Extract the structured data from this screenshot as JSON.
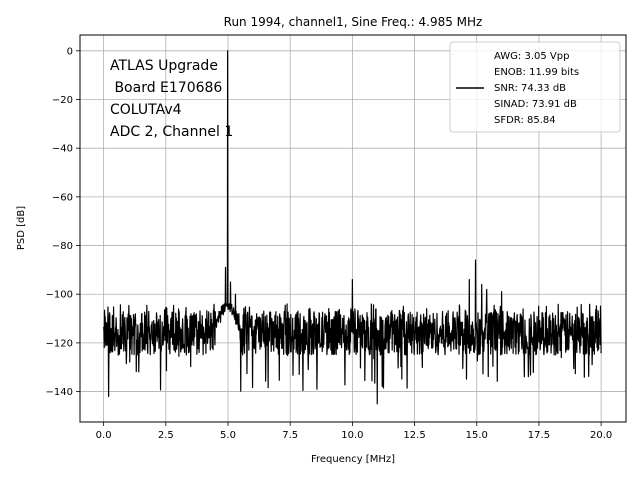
{
  "chart_data": {
    "type": "line",
    "title": "Run 1994, channel1, Sine Freq.: 4.985 MHz",
    "xlabel": "Frequency [MHz]",
    "ylabel": "PSD [dB]",
    "xlim": [
      -0.95,
      21.0
    ],
    "ylim": [
      -152.5,
      6.5
    ],
    "xticks": [
      0.0,
      2.5,
      5.0,
      7.5,
      10.0,
      12.5,
      15.0,
      17.5,
      20.0
    ],
    "xtick_labels": [
      "0.0",
      "2.5",
      "5.0",
      "7.5",
      "10.0",
      "12.5",
      "15.0",
      "17.5",
      "20.0"
    ],
    "yticks": [
      0,
      -20,
      -40,
      -60,
      -80,
      -100,
      -120,
      -140
    ],
    "ytick_labels": [
      "0",
      "−20",
      "−40",
      "−60",
      "−80",
      "−100",
      "−120",
      "−140"
    ],
    "grid": true,
    "line_color": "#000000",
    "annotation_lines": [
      "ATLAS Upgrade",
      " Board E170686",
      "COLUTAv4",
      "ADC 2, Channel 1"
    ],
    "legend": {
      "position": "top-right",
      "entries": [
        "AWG: 3.05 Vpp",
        "ENOB: 11.99 bits",
        "SNR: 74.33 dB",
        "SINAD: 73.91 dB",
        "SFDR: 85.84"
      ]
    },
    "series": [
      {
        "noise_floor": {
          "x_range": [
            0.0,
            20.0
          ],
          "mean": -116,
          "min": -145,
          "max": -104
        },
        "peaks": [
          {
            "x": 0.2,
            "y": -142
          },
          {
            "x": 4.985,
            "y": 0
          },
          {
            "x": 4.9,
            "y": -89
          },
          {
            "x": 5.1,
            "y": -95
          },
          {
            "x": 5.3,
            "y": -100
          },
          {
            "x": 10.0,
            "y": -94
          },
          {
            "x": 11.0,
            "y": -145
          },
          {
            "x": 14.7,
            "y": -94
          },
          {
            "x": 14.95,
            "y": -86
          },
          {
            "x": 15.2,
            "y": -96
          },
          {
            "x": 15.4,
            "y": -98
          },
          {
            "x": 16.0,
            "y": -99
          }
        ]
      }
    ]
  }
}
